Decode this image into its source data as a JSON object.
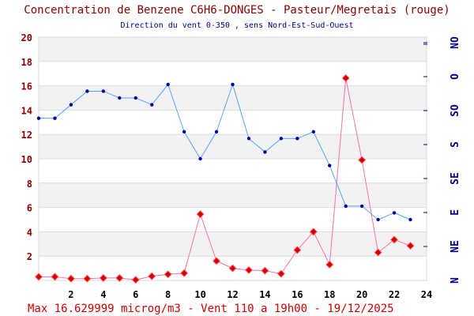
{
  "chart_data": {
    "type": "line",
    "title": "Concentration de Benzene C6H6-DONGES - Pasteur/Megretais (rouge)",
    "subtitle": "Direction du vent 0-350 , sens Nord-Est-Sud-Ouest",
    "footer": "Max 16.629999 microg/m3 - Vent 110  a 19h00 - 19/12/2025",
    "xlim": [
      0,
      24
    ],
    "ylim": [
      0,
      20
    ],
    "x_ticks": [
      "2",
      "4",
      "6",
      "8",
      "10",
      "12",
      "14",
      "16",
      "18",
      "20",
      "22",
      "24"
    ],
    "y_ticks": [
      "2",
      "4",
      "6",
      "8",
      "10",
      "12",
      "14",
      "16",
      "18",
      "20"
    ],
    "right_axis_labels": [
      "N",
      "NE",
      "E",
      "SE",
      "S",
      "SO",
      "O",
      "NO"
    ],
    "grid": true,
    "x": [
      0,
      1,
      2,
      3,
      4,
      5,
      6,
      7,
      8,
      9,
      10,
      11,
      12,
      13,
      14,
      15,
      16,
      17,
      18,
      19,
      20,
      21,
      22,
      23
    ],
    "series": [
      {
        "name": "Benzene C6H6 (microg/m3)",
        "color": "#ff6fa8",
        "marker_color": "#d00000",
        "values": [
          0.3,
          0.3,
          0.15,
          0.15,
          0.2,
          0.2,
          0.05,
          0.35,
          0.5,
          0.6,
          5.45,
          1.6,
          1.0,
          0.85,
          0.8,
          0.55,
          2.5,
          4.0,
          1.3,
          16.63,
          9.9,
          2.3,
          3.35,
          2.85
        ]
      },
      {
        "name": "Direction du vent (degres)",
        "color": "#4da6ff",
        "marker_color": "#0000a0",
        "values": [
          240,
          240,
          260,
          280,
          280,
          270,
          270,
          260,
          290,
          220,
          180,
          220,
          290,
          210,
          190,
          210,
          210,
          220,
          170,
          110,
          110,
          90,
          100,
          90
        ]
      }
    ]
  }
}
